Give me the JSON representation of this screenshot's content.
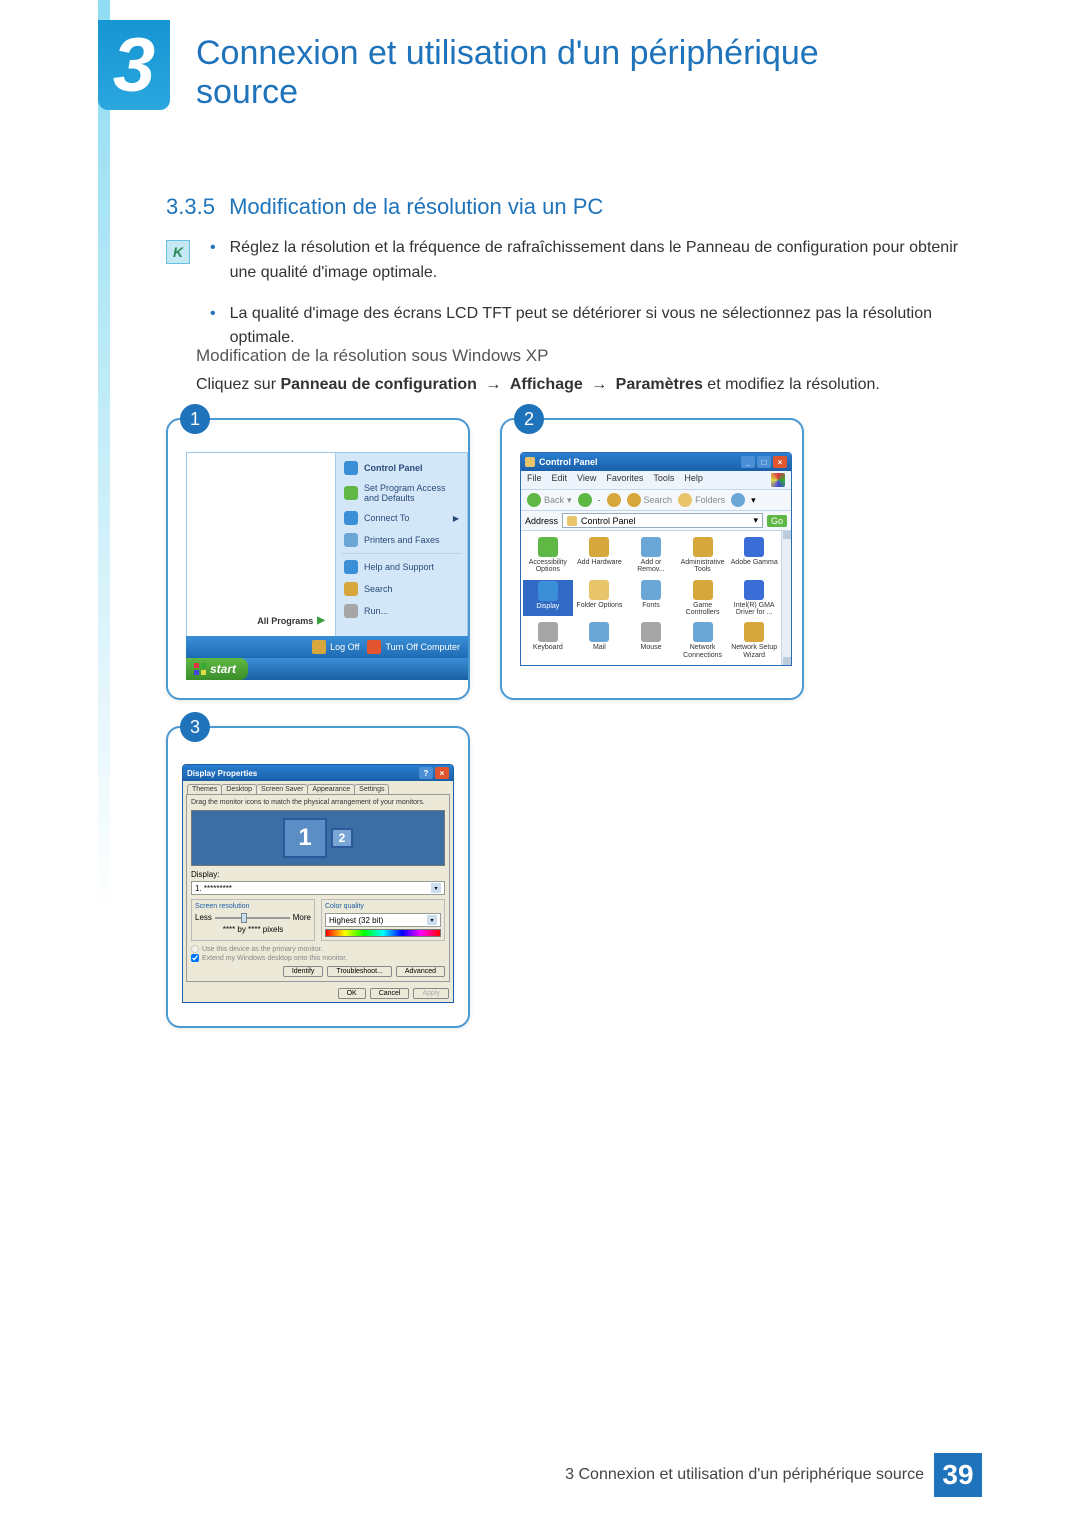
{
  "colors": {
    "brand_blue": "#1e73ba",
    "gradient_top": "#8fdcf2",
    "card_border": "#4a99d4",
    "text_body": "#333333",
    "text_muted": "#555555"
  },
  "chapter": {
    "number": "3",
    "title": "Connexion et utilisation d'un périphérique source"
  },
  "section": {
    "number": "3.3.5",
    "title": "Modification de la résolution via un PC"
  },
  "notes": {
    "bullets": [
      "Réglez la résolution et la fréquence de rafraîchissement dans le Panneau de configuration pour obtenir une qualité d'image optimale.",
      "La qualité d'image des écrans LCD TFT peut se détériorer si vous ne sélectionnez pas la résolution optimale."
    ]
  },
  "subheading": "Modification de la résolution sous Windows XP",
  "instruction": {
    "prefix": "Cliquez sur ",
    "path": [
      "Panneau de configuration",
      "Affichage",
      "Paramètres"
    ],
    "arrow": "→",
    "suffix": " et modifiez la résolution."
  },
  "step1": {
    "badge": "1",
    "start_menu": {
      "all_programs": "All Programs",
      "right_items": [
        {
          "label": "Control Panel",
          "icon_color": "#3a8fd6",
          "bold": true
        },
        {
          "label": "Set Program Access and Defaults",
          "icon_color": "#5fb844"
        },
        {
          "label": "Connect To",
          "icon_color": "#3a8fd6",
          "has_submenu": true
        },
        {
          "label": "Printers and Faxes",
          "icon_color": "#6aa7d6"
        },
        {
          "divider": true
        },
        {
          "label": "Help and Support",
          "icon_color": "#3a8fd6"
        },
        {
          "label": "Search",
          "icon_color": "#d6a73a"
        },
        {
          "label": "Run...",
          "icon_color": "#a6a6a6"
        }
      ],
      "logoff": "Log Off",
      "turnoff": "Turn Off Computer",
      "logoff_color": "#d6a73a",
      "turnoff_color": "#e3552e",
      "start_label": "start"
    }
  },
  "step2": {
    "badge": "2",
    "window": {
      "title": "Control Panel",
      "menus": [
        "File",
        "Edit",
        "View",
        "Favorites",
        "Tools",
        "Help"
      ],
      "toolbar": {
        "back": "Back",
        "back_color": "#5fb844",
        "fwd_color": "#5fb844",
        "up_color": "#d6a73a",
        "search": "Search",
        "search_color": "#d6a73a",
        "folders": "Folders",
        "folders_color": "#e8c46a",
        "views_color": "#6aa7d6"
      },
      "address_label": "Address",
      "address_value": "Control Panel",
      "go_label": "Go",
      "items": [
        {
          "label": "Accessibility Options",
          "color": "#5fb844"
        },
        {
          "label": "Add Hardware",
          "color": "#d6a73a"
        },
        {
          "label": "Add or Remov...",
          "color": "#6aa7d6"
        },
        {
          "label": "Administrative Tools",
          "color": "#d6a73a"
        },
        {
          "label": "Adobe Gamma",
          "color": "#3a6ed6"
        },
        {
          "label": "Display",
          "color": "#3a8fd6",
          "highlighted": true
        },
        {
          "label": "Folder Options",
          "color": "#e8c46a"
        },
        {
          "label": "Fonts",
          "color": "#6aa7d6"
        },
        {
          "label": "Game Controllers",
          "color": "#d6a73a"
        },
        {
          "label": "Intel(R) GMA Driver for ...",
          "color": "#3a6ed6"
        },
        {
          "label": "Keyboard",
          "color": "#a6a6a6"
        },
        {
          "label": "Mail",
          "color": "#6aa7d6"
        },
        {
          "label": "Mouse",
          "color": "#a6a6a6"
        },
        {
          "label": "Network Connections",
          "color": "#6aa7d6"
        },
        {
          "label": "Network Setup Wizard",
          "color": "#d6a73a"
        }
      ]
    }
  },
  "step3": {
    "badge": "3",
    "dialog": {
      "title": "Display Properties",
      "tabs": [
        "Themes",
        "Desktop",
        "Screen Saver",
        "Appearance",
        "Settings"
      ],
      "active_tab": "Settings",
      "instruction": "Drag the monitor icons to match the physical arrangement of your monitors.",
      "monitors": [
        "1",
        "2"
      ],
      "display_label": "Display:",
      "display_value": "1. *********",
      "screen_res_label": "Screen resolution",
      "less": "Less",
      "more": "More",
      "res_value": "**** by **** pixels",
      "color_label": "Color quality",
      "color_value": "Highest (32 bit)",
      "check1": "Use this device as the primary monitor.",
      "check2": "Extend my Windows desktop onto this monitor.",
      "identify": "Identify",
      "troubleshoot": "Troubleshoot...",
      "advanced": "Advanced",
      "ok": "OK",
      "cancel": "Cancel",
      "apply": "Apply"
    }
  },
  "footer": {
    "text": "3 Connexion et utilisation d'un périphérique source",
    "page": "39"
  }
}
